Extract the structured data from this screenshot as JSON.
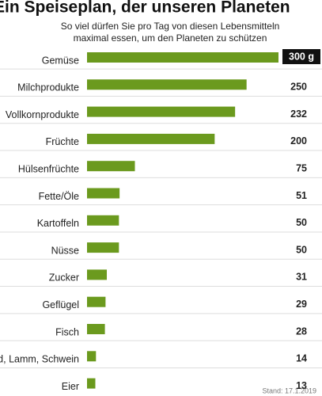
{
  "chart_data": {
    "type": "bar",
    "orientation": "horizontal",
    "title": "Ein Speiseplan, der unseren Planeten",
    "subtitle": [
      "So viel dürfen Sie pro Tag von diesen Lebensmitteln",
      "maximal essen, um den Planeten zu schützen"
    ],
    "source": "Stand: 17.1.2019",
    "categories": [
      "Gemüse",
      "Milchprodukte",
      "Vollkornprodukte",
      "Früchte",
      "Hülsenfrüchte",
      "Fette/Öle",
      "Kartoffeln",
      "Nüsse",
      "Zucker",
      "Geflügel",
      "Fisch",
      "Rind, Lamm, Schwein",
      "Eier"
    ],
    "values": [
      300,
      250,
      232,
      200,
      75,
      51,
      50,
      50,
      31,
      29,
      28,
      14,
      13
    ],
    "value_labels": [
      "300 g",
      "250",
      "232",
      "200",
      "75",
      "51",
      "50",
      "50",
      "31",
      "29",
      "28",
      "14",
      "13"
    ],
    "color": "#6b9a1e"
  }
}
